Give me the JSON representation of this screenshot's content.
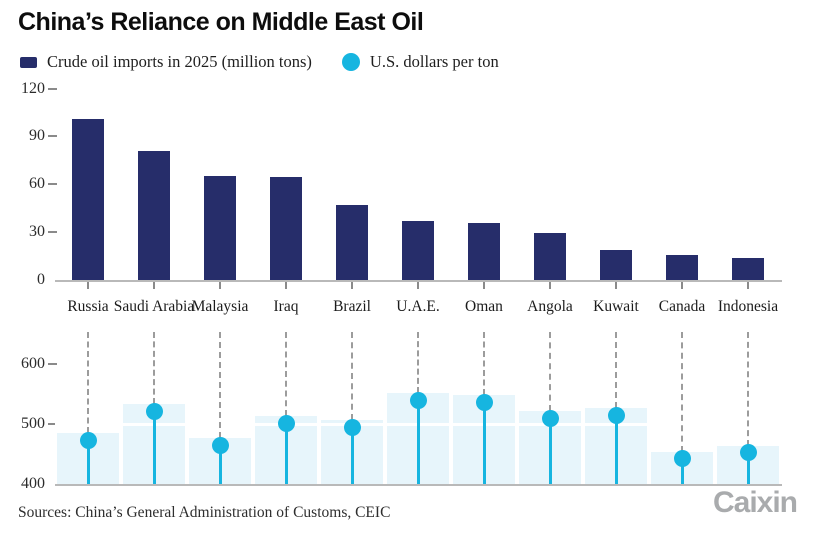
{
  "title": "China’s Reliance on Middle East Oil",
  "legend": {
    "items": [
      {
        "label": "Crude oil imports in 2025 (million tons)",
        "shape": "square",
        "color": "#262d6a"
      },
      {
        "label": "U.S. dollars per ton",
        "shape": "circle",
        "color": "#16b5e0"
      }
    ]
  },
  "source_line": "Sources: China’s General Administration of Customs, CEIC",
  "logo_text": "Caixin",
  "colors": {
    "navy_bar": "#262d6a",
    "cyan_dot": "#16b5e0",
    "pale_bar": "#e7f5fb",
    "axis_gray": "#b9b9b9",
    "dash_gray": "#9c9c9c",
    "logo_gray": "#a9abad"
  },
  "chart_data": [
    {
      "type": "bar",
      "title": "Crude oil imports in 2025 (million tons)",
      "categories": [
        "Russia",
        "Saudi Arabia",
        "Malaysia",
        "Iraq",
        "Brazil",
        "U.A.E.",
        "Oman",
        "Angola",
        "Kuwait",
        "Canada",
        "Indonesia"
      ],
      "values": [
        101,
        81,
        65,
        64.5,
        47,
        37,
        35.5,
        29.5,
        18.5,
        15.5,
        14
      ],
      "xlabel": "",
      "ylabel": "",
      "ylim": [
        0,
        120
      ],
      "yticks": [
        0,
        30,
        60,
        90,
        120
      ],
      "grid": false,
      "legend_position": "top"
    },
    {
      "type": "lollipop",
      "title": "U.S. dollars per ton",
      "categories": [
        "Russia",
        "Saudi Arabia",
        "Malaysia",
        "Iraq",
        "Brazil",
        "U.A.E.",
        "Oman",
        "Angola",
        "Kuwait",
        "Canada",
        "Indonesia"
      ],
      "values": [
        473,
        521,
        465,
        501,
        495,
        540,
        536,
        510,
        515,
        442,
        452
      ],
      "xlabel": "",
      "ylabel": "",
      "ylim": [
        400,
        620
      ],
      "yticks": [
        400,
        500,
        600
      ],
      "gridline_white_at": 500,
      "halo_bar_offset": 12,
      "grid": false,
      "legend_position": "top"
    }
  ]
}
